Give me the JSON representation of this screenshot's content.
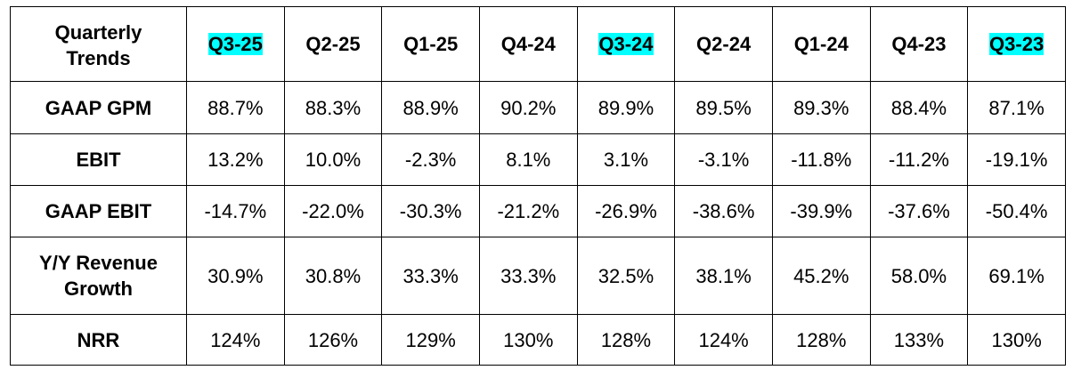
{
  "table": {
    "corner_label": "Quarterly\nTrends",
    "columns": [
      {
        "label": "Q3-25",
        "highlight": true
      },
      {
        "label": "Q2-25",
        "highlight": false
      },
      {
        "label": "Q1-25",
        "highlight": false
      },
      {
        "label": "Q4-24",
        "highlight": false
      },
      {
        "label": "Q3-24",
        "highlight": true
      },
      {
        "label": "Q2-24",
        "highlight": false
      },
      {
        "label": "Q1-24",
        "highlight": false
      },
      {
        "label": "Q4-23",
        "highlight": false
      },
      {
        "label": "Q3-23",
        "highlight": true
      }
    ],
    "highlight_color": "#00ffff",
    "rows": [
      {
        "label": "GAAP GPM",
        "values": [
          "88.7%",
          "88.3%",
          "88.9%",
          "90.2%",
          "89.9%",
          "89.5%",
          "89.3%",
          "88.4%",
          "87.1%"
        ]
      },
      {
        "label": "EBIT",
        "values": [
          "13.2%",
          "10.0%",
          "-2.3%",
          "8.1%",
          "3.1%",
          "-3.1%",
          "-11.8%",
          "-11.2%",
          "-19.1%"
        ]
      },
      {
        "label": "GAAP EBIT",
        "values": [
          "-14.7%",
          "-22.0%",
          "-30.3%",
          "-21.2%",
          "-26.9%",
          "-38.6%",
          "-39.9%",
          "-37.6%",
          "-50.4%"
        ]
      },
      {
        "label": "Y/Y Revenue Growth",
        "values": [
          "30.9%",
          "30.8%",
          "33.3%",
          "33.3%",
          "32.5%",
          "38.1%",
          "45.2%",
          "58.0%",
          "69.1%"
        ]
      },
      {
        "label": "NRR",
        "values": [
          "124%",
          "126%",
          "129%",
          "130%",
          "128%",
          "124%",
          "128%",
          "133%",
          "130%"
        ]
      }
    ]
  }
}
